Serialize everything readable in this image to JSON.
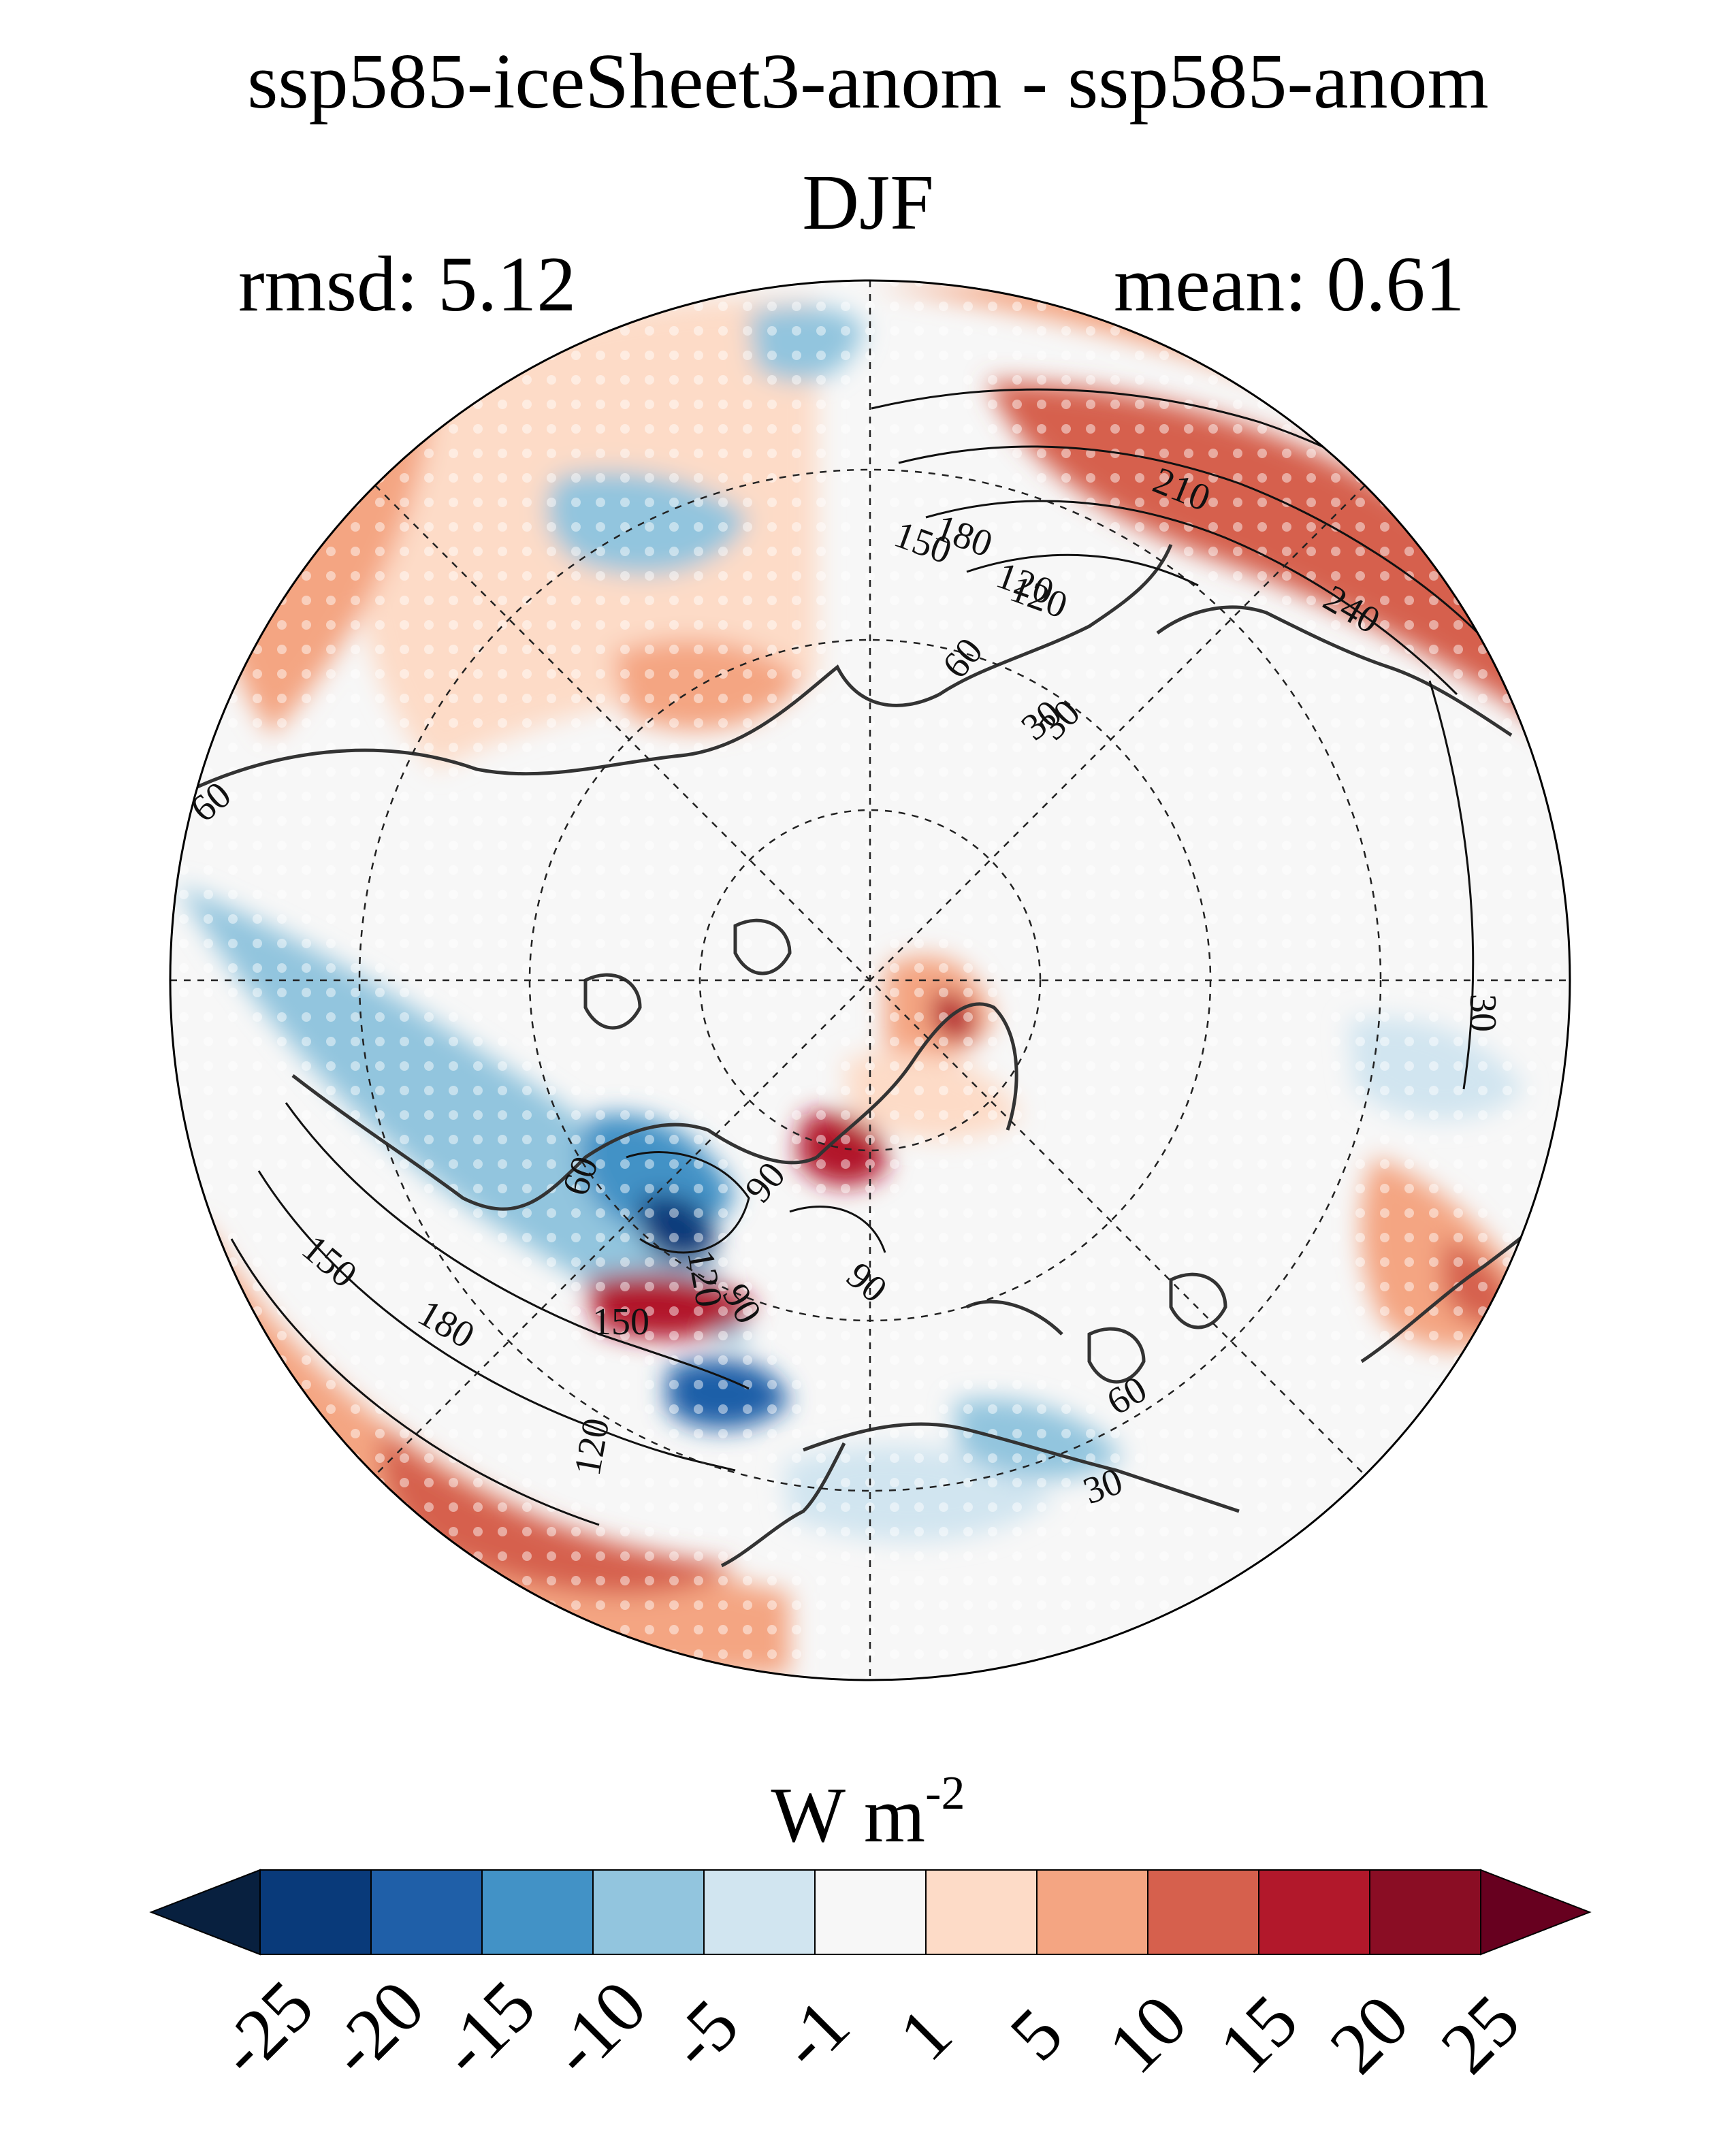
{
  "title": "ssp585-iceSheet3-anom - ssp585-anom",
  "season": "DJF",
  "stats": {
    "rmsd": "rmsd: 5.12",
    "mean": "mean: 0.61"
  },
  "units": {
    "base": "W m",
    "exponent": "-2"
  },
  "colorbar": {
    "levels": [
      "-25",
      "-20",
      "-15",
      "-10",
      "-5",
      "-1",
      "1",
      "5",
      "10",
      "15",
      "20",
      "25"
    ],
    "colors": [
      "#093a7a",
      "#1f5fa8",
      "#4292c6",
      "#92c5de",
      "#d1e5f0",
      "#f7f7f7",
      "#fddbc7",
      "#f4a582",
      "#d6604d",
      "#b2182b",
      "#8a0d24"
    ],
    "under_color": "#08203f",
    "over_color": "#67001f",
    "extend": "both"
  },
  "contour_labels": [
    "210",
    "240",
    "180",
    "150",
    "120",
    "60",
    "30",
    "60",
    "30",
    "150",
    "180",
    "60",
    "120",
    "150",
    "120",
    "90",
    "90",
    "90",
    "30",
    "60",
    "30",
    "120"
  ],
  "map": {
    "projection": "north-polar-stereographic",
    "stippling": true,
    "land_outline": true
  }
}
